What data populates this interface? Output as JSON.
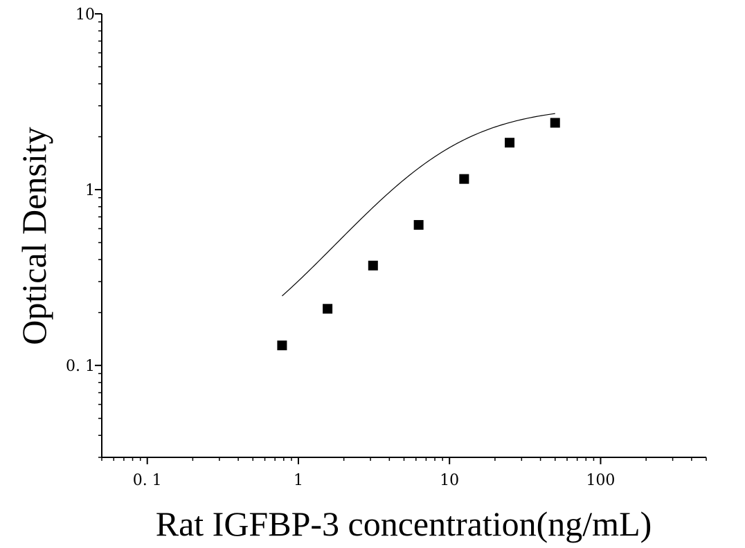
{
  "chart_data": {
    "type": "scatter",
    "title": "",
    "xlabel": "Rat IGFBP-3 concentration(ng/mL)",
    "ylabel": "Optical Density",
    "xscale": "log",
    "yscale": "log",
    "xlim": [
      0.05,
      500
    ],
    "ylim": [
      0.03,
      10
    ],
    "x_ticks": [
      {
        "value": 0.1,
        "label": "0. 1"
      },
      {
        "value": 1,
        "label": "1"
      },
      {
        "value": 10,
        "label": "10"
      },
      {
        "value": 100,
        "label": "100"
      }
    ],
    "y_ticks": [
      {
        "value": 0.1,
        "label": "0. 1"
      },
      {
        "value": 1,
        "label": "1"
      },
      {
        "value": 10,
        "label": "10"
      }
    ],
    "grid": false,
    "legend": "none",
    "marker_color": "#000000",
    "series": [
      {
        "points": [
          {
            "x": 0.78,
            "y": 0.13
          },
          {
            "x": 1.56,
            "y": 0.21
          },
          {
            "x": 3.12,
            "y": 0.37
          },
          {
            "x": 6.25,
            "y": 0.63
          },
          {
            "x": 12.5,
            "y": 1.15
          },
          {
            "x": 25,
            "y": 1.85
          },
          {
            "x": 50,
            "y": 2.4
          }
        ]
      }
    ],
    "fit_curve": {
      "type": "four-parameter logistic",
      "color": "#000000",
      "x_range": [
        0.78,
        50
      ],
      "params": {
        "bottom": 0.08,
        "top": 3.0,
        "ec50": 8.0,
        "hill": 1.2
      }
    }
  }
}
